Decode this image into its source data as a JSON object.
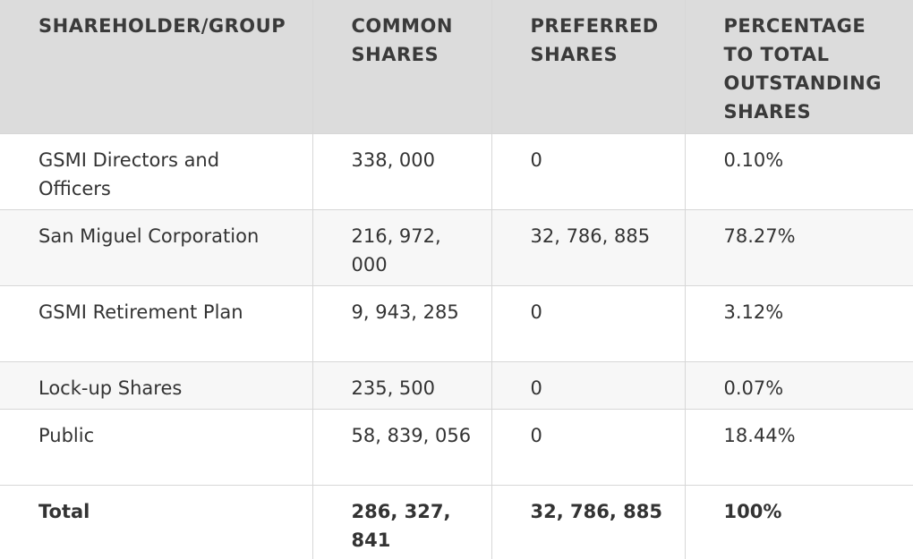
{
  "table": {
    "headers": {
      "shareholder": "SHAREHOLDER/GROUP",
      "common": "COMMON SHARES",
      "preferred": "PREFERRED SHARES",
      "percentage": "PERCENTAGE TO TOTAL OUTSTANDING SHARES"
    },
    "rows": [
      {
        "shareholder": "GSMI Directors and Officers",
        "common": "338, 000",
        "preferred": "0",
        "percentage": "0.10%"
      },
      {
        "shareholder": "San Miguel Corporation",
        "common": "216, 972, 000",
        "preferred": "32, 786, 885",
        "percentage": "78.27%"
      },
      {
        "shareholder": "GSMI Retirement Plan",
        "common": "9, 943, 285",
        "preferred": "0",
        "percentage": "3.12%"
      },
      {
        "shareholder": "Lock-up Shares",
        "common": "235, 500",
        "preferred": "0",
        "percentage": "0.07%"
      },
      {
        "shareholder": "Public",
        "common": "58, 839, 056",
        "preferred": "0",
        "percentage": "18.44%"
      }
    ],
    "total": {
      "label": "Total",
      "common": "286, 327, 841",
      "preferred": "32, 786, 885",
      "percentage": "100%"
    }
  }
}
